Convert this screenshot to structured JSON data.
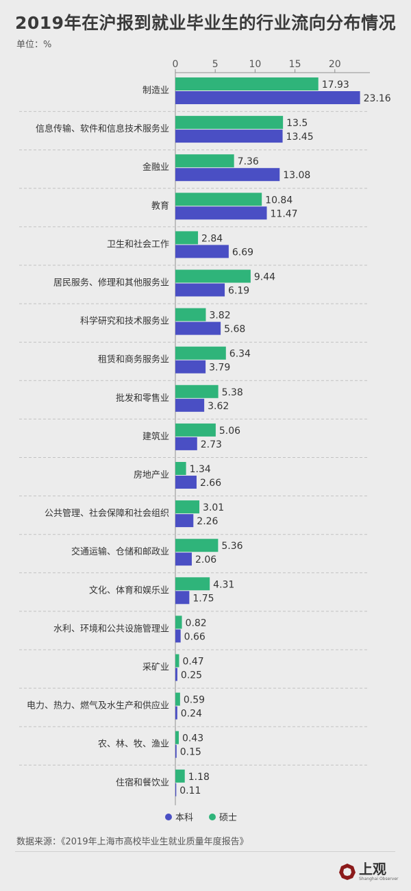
{
  "page": {
    "title": "2019年在沪报到就业毕业生的行业流向分布情况",
    "unit": "单位：%",
    "source": "数据来源：《2019年上海市高校毕业生就业质量年度报告》",
    "logo_text": "上观",
    "logo_sub": "Shanghai Observer"
  },
  "colors": {
    "master": "#2fb47a",
    "bachelor": "#4a4fc4",
    "axis": "#8f8f8f",
    "grid": "#c2c2c2",
    "text": "#333333"
  },
  "chart_data": {
    "type": "bar",
    "orientation": "horizontal",
    "categories": [
      "制造业",
      "信息传输、软件和信息技术服务业",
      "金融业",
      "教育",
      "卫生和社会工作",
      "居民服务、修理和其他服务业",
      "科学研究和技术服务业",
      "租赁和商务服务业",
      "批发和零售业",
      "建筑业",
      "房地产业",
      "公共管理、社会保障和社会组织",
      "交通运输、仓储和邮政业",
      "文化、体育和娱乐业",
      "水利、环境和公共设施管理业",
      "采矿业",
      "电力、热力、燃气及水生产和供应业",
      "农、林、牧、渔业",
      "住宿和餐饮业"
    ],
    "series": [
      {
        "name": "硕士",
        "color": "#2fb47a",
        "values": [
          17.93,
          13.5,
          7.36,
          10.84,
          2.84,
          9.44,
          3.82,
          6.34,
          5.38,
          5.06,
          1.34,
          3.01,
          5.36,
          4.31,
          0.82,
          0.47,
          0.59,
          0.43,
          1.18
        ]
      },
      {
        "name": "本科",
        "color": "#4a4fc4",
        "values": [
          23.16,
          13.45,
          13.08,
          11.47,
          6.69,
          6.19,
          5.68,
          3.79,
          3.62,
          2.73,
          2.66,
          2.26,
          2.06,
          1.75,
          0.66,
          0.25,
          0.24,
          0.15,
          0.11
        ]
      }
    ],
    "x_ticks": [
      0,
      5,
      10,
      15,
      20
    ],
    "xlim": [
      0,
      24
    ],
    "x_axis_position": "top",
    "legend": [
      {
        "name": "本科",
        "color": "#4a4fc4"
      },
      {
        "name": "硕士",
        "color": "#2fb47a"
      }
    ],
    "legend_position": "bottom"
  }
}
